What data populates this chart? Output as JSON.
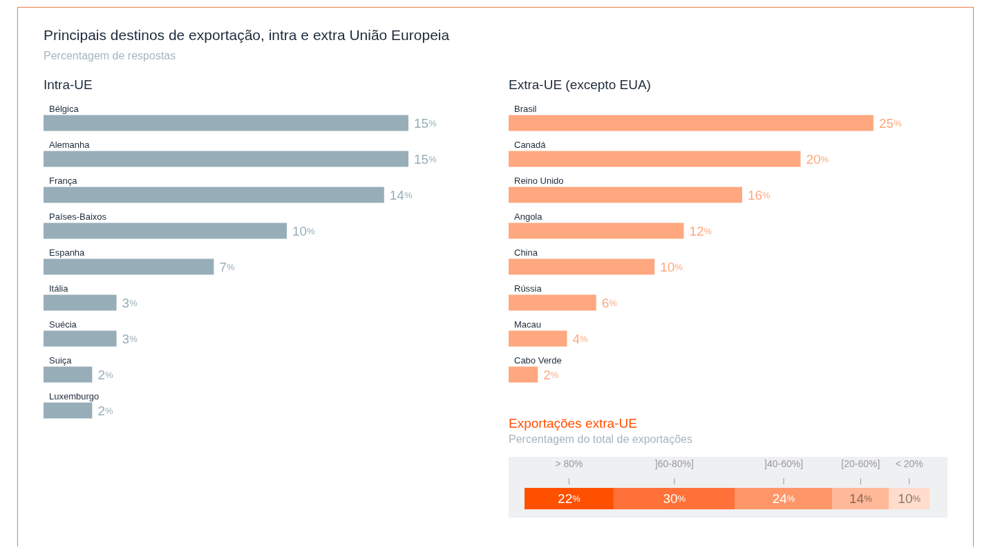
{
  "chart_data": [
    {
      "type": "bar",
      "orientation": "horizontal",
      "title": "Principais destinos de exportação, intra e extra União Europeia",
      "subtitle": "Percentagem de respostas",
      "annotations": [
        "Intra-UE"
      ],
      "categories": [
        "Bélgica",
        "Alemanha",
        "França",
        "Países-Baixos",
        "Espanha",
        "Itália",
        "Suécia",
        "Suiça",
        "Luxemburgo"
      ],
      "values": [
        15,
        15,
        14,
        10,
        7,
        3,
        3,
        2,
        2
      ],
      "value_labels": [
        "15%",
        "15%",
        "14%",
        "10%",
        "7%",
        "3%",
        "3%",
        "2%",
        "2%"
      ],
      "color": "#97aeb9"
    },
    {
      "type": "bar",
      "orientation": "horizontal",
      "title": "Extra-UE (excepto EUA)",
      "categories": [
        "Brasil",
        "Canadá",
        "Reino Unido",
        "Angola",
        "China",
        "Rússia",
        "Macau",
        "Cabo Verde"
      ],
      "values": [
        25,
        20,
        16,
        12,
        10,
        6,
        4,
        2
      ],
      "value_labels": [
        "25%",
        "20%",
        "16%",
        "12%",
        "10%",
        "6%",
        "4%",
        "2%"
      ],
      "color": "#ffa77f"
    },
    {
      "type": "bar",
      "orientation": "horizontal",
      "stacked": true,
      "title": "Exportações extra-UE",
      "subtitle": "Percentagem do total de exportações",
      "categories": [
        null
      ],
      "series": [
        {
          "name": "> 80%",
          "color": "#ff5000",
          "values": [
            22
          ],
          "value_labels": [
            "22%"
          ]
        },
        {
          "name": "]60-80%]",
          "color": "#ff7138",
          "values": [
            30
          ],
          "value_labels": [
            "30%"
          ]
        },
        {
          "name": "]40-60%]",
          "color": "#ff9668",
          "values": [
            24
          ],
          "value_labels": [
            "24%"
          ]
        },
        {
          "name": "[20-60%]",
          "color": "#ffb898",
          "values": [
            14
          ],
          "value_labels": [
            "14%"
          ]
        },
        {
          "name": "< 20%",
          "color": "#ffdccb",
          "values": [
            10
          ],
          "value_labels": [
            "10%"
          ]
        }
      ]
    }
  ]
}
